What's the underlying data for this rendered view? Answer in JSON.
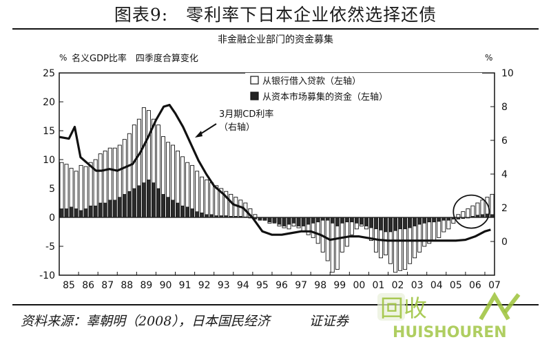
{
  "figure": {
    "title": "图表9:　零利率下日本企业依然选择还债",
    "source": "资料来源：辜朝明（2008），日本国民经济　　　证证券"
  },
  "chart_data": {
    "type": "bar+line",
    "title": "非金融企业部门的资金募集",
    "left_unit": "%",
    "left_axis_label": "名义GDP比率　四季度合算变化",
    "right_unit": "%",
    "x_ticks": [
      "85",
      "86",
      "87",
      "88",
      "89",
      "90",
      "91",
      "92",
      "93",
      "94",
      "95",
      "96",
      "97",
      "98",
      "99",
      "00",
      "01",
      "02",
      "03",
      "04",
      "05",
      "06",
      "07"
    ],
    "y_left": {
      "min": -10,
      "max": 25,
      "ticks": [
        25,
        20,
        15,
        10,
        5,
        0,
        -5,
        -10
      ]
    },
    "y_right": {
      "min": -2,
      "max": 10,
      "ticks": [
        10,
        8,
        6,
        4,
        2,
        0
      ]
    },
    "legend": {
      "bank_loans": "从银行借入贷款（左轴）",
      "market_funds": "从资本市场募集的资金（左轴）"
    },
    "line_annotation": [
      "3月期CD利率",
      "（右轴）"
    ],
    "x_range": [
      1985,
      2007.5
    ],
    "series": [
      {
        "name": "从银行借入贷款（左轴）",
        "axis": "left",
        "x": [
          1985,
          1985.25,
          1985.5,
          1985.75,
          1986,
          1986.25,
          1986.5,
          1986.75,
          1987,
          1987.25,
          1987.5,
          1987.75,
          1988,
          1988.25,
          1988.5,
          1988.75,
          1989,
          1989.25,
          1989.5,
          1989.75,
          1990,
          1990.25,
          1990.5,
          1990.75,
          1991,
          1991.25,
          1991.5,
          1991.75,
          1992,
          1992.25,
          1992.5,
          1992.75,
          1993,
          1993.25,
          1993.5,
          1993.75,
          1994,
          1994.25,
          1994.5,
          1994.75,
          1995,
          1995.25,
          1995.5,
          1995.75,
          1996,
          1996.25,
          1996.5,
          1996.75,
          1997,
          1997.25,
          1997.5,
          1997.75,
          1998,
          1998.25,
          1998.5,
          1998.75,
          1999,
          1999.25,
          1999.5,
          1999.75,
          2000,
          2000.25,
          2000.5,
          2000.75,
          2001,
          2001.25,
          2001.5,
          2001.75,
          2002,
          2002.25,
          2002.5,
          2002.75,
          2003,
          2003.25,
          2003.5,
          2003.75,
          2004,
          2004.25,
          2004.5,
          2004.75,
          2005,
          2005.25,
          2005.5,
          2005.75,
          2006,
          2006.25,
          2006.5,
          2006.75,
          2007,
          2007.25
        ],
        "values": [
          9.5,
          9.2,
          8.5,
          8.0,
          9.0,
          8.8,
          9.5,
          10.0,
          11.0,
          11.5,
          12.0,
          12.0,
          12.5,
          13.5,
          14.5,
          16.0,
          17.0,
          19.0,
          18.5,
          17.0,
          16.0,
          14.0,
          13.0,
          12.5,
          11.5,
          10.5,
          9.5,
          9.0,
          8.0,
          7.0,
          6.5,
          6.0,
          5.5,
          5.0,
          4.5,
          4.0,
          3.5,
          3.0,
          2.5,
          1.5,
          0.5,
          0.0,
          -0.5,
          -1.0,
          -0.8,
          -1.5,
          -1.8,
          -2.0,
          -1.5,
          -1.8,
          -2.5,
          -3.0,
          -3.5,
          -4.5,
          -6.0,
          -7.5,
          -9.5,
          -9.0,
          -6.0,
          -5.0,
          -3.0,
          -2.0,
          -1.5,
          -2.0,
          -4.0,
          -6.0,
          -7.0,
          -6.5,
          -8.0,
          -9.5,
          -9.2,
          -9.0,
          -8.0,
          -7.0,
          -6.0,
          -5.0,
          -4.5,
          -4.0,
          -3.5,
          -2.5,
          -2.0,
          -1.0,
          0.5,
          1.0,
          1.5,
          2.0,
          2.5,
          3.0,
          3.5,
          4.0
        ]
      },
      {
        "name": "从资本市场募集的资金（左轴）",
        "axis": "left",
        "x": [
          1985,
          1985.25,
          1985.5,
          1985.75,
          1986,
          1986.25,
          1986.5,
          1986.75,
          1987,
          1987.25,
          1987.5,
          1987.75,
          1988,
          1988.25,
          1988.5,
          1988.75,
          1989,
          1989.25,
          1989.5,
          1989.75,
          1990,
          1990.25,
          1990.5,
          1990.75,
          1991,
          1991.25,
          1991.5,
          1991.75,
          1992,
          1992.25,
          1992.5,
          1992.75,
          1993,
          1993.25,
          1993.5,
          1993.75,
          1994,
          1994.25,
          1994.5,
          1994.75,
          1995,
          1995.25,
          1995.5,
          1995.75,
          1996,
          1996.25,
          1996.5,
          1996.75,
          1997,
          1997.25,
          1997.5,
          1997.75,
          1998,
          1998.25,
          1998.5,
          1998.75,
          1999,
          1999.25,
          1999.5,
          1999.75,
          2000,
          2000.25,
          2000.5,
          2000.75,
          2001,
          2001.25,
          2001.5,
          2001.75,
          2002,
          2002.25,
          2002.5,
          2002.75,
          2003,
          2003.25,
          2003.5,
          2003.75,
          2004,
          2004.25,
          2004.5,
          2004.75,
          2005,
          2005.25,
          2005.5,
          2005.75,
          2006,
          2006.25,
          2006.5,
          2006.75,
          2007,
          2007.25
        ],
        "values": [
          1.5,
          1.5,
          1.8,
          1.5,
          1.2,
          1.5,
          2.0,
          2.0,
          2.5,
          2.5,
          3.0,
          3.0,
          3.5,
          4.0,
          4.5,
          5.0,
          5.5,
          6.0,
          6.5,
          6.0,
          5.0,
          4.0,
          3.5,
          3.0,
          2.5,
          2.0,
          1.8,
          1.5,
          1.0,
          0.8,
          0.5,
          0.5,
          0.3,
          0.3,
          0.3,
          0.2,
          0.2,
          0.2,
          0.1,
          0.0,
          -0.3,
          -0.5,
          -0.5,
          -0.8,
          -1.0,
          -1.2,
          -1.5,
          -1.2,
          -1.0,
          -1.5,
          -1.5,
          -1.2,
          -1.0,
          -0.8,
          -0.5,
          -0.5,
          -1.0,
          -1.5,
          -1.0,
          -0.8,
          -0.8,
          -1.0,
          -1.2,
          -1.5,
          -1.8,
          -2.0,
          -2.2,
          -2.5,
          -2.5,
          -2.3,
          -2.0,
          -2.0,
          -1.8,
          -1.5,
          -1.2,
          -1.0,
          -0.8,
          -0.8,
          -0.7,
          -0.5,
          -0.5,
          -0.3,
          -0.3,
          -0.2,
          0.0,
          0.2,
          0.4,
          0.5,
          0.6,
          0.5
        ]
      },
      {
        "name": "3月期CD利率（右轴）",
        "type": "line",
        "axis": "right",
        "x": [
          1985,
          1985.5,
          1985.8,
          1986.1,
          1986.5,
          1986.9,
          1987.2,
          1987.6,
          1988.0,
          1988.4,
          1988.8,
          1989.2,
          1989.6,
          1990.0,
          1990.4,
          1990.7,
          1991.0,
          1991.4,
          1991.8,
          1992.2,
          1992.6,
          1993.0,
          1993.5,
          1994.0,
          1994.5,
          1995.0,
          1995.5,
          1996.0,
          1996.5,
          1997.0,
          1997.5,
          1998.0,
          1998.5,
          1999.0,
          1999.5,
          2000.0,
          2000.5,
          2001.0,
          2001.5,
          2002.0,
          2002.5,
          2003.0,
          2003.5,
          2004.0,
          2004.5,
          2005.0,
          2005.5,
          2006.0,
          2006.5,
          2007.0,
          2007.3
        ],
        "values": [
          6.2,
          6.1,
          6.8,
          5.0,
          4.6,
          4.2,
          4.2,
          4.3,
          4.2,
          4.4,
          4.6,
          5.3,
          6.2,
          7.2,
          8.0,
          8.1,
          7.6,
          6.8,
          5.8,
          4.8,
          4.0,
          3.3,
          2.8,
          2.2,
          2.0,
          1.4,
          0.6,
          0.4,
          0.4,
          0.5,
          0.6,
          0.6,
          0.4,
          0.1,
          0.2,
          0.3,
          0.3,
          0.2,
          0.1,
          0.05,
          0.05,
          0.05,
          0.05,
          0.05,
          0.05,
          0.05,
          0.05,
          0.1,
          0.3,
          0.6,
          0.7
        ]
      }
    ],
    "highlight_circle": {
      "x": 2006.3,
      "y_left": 1.0
    }
  }
}
